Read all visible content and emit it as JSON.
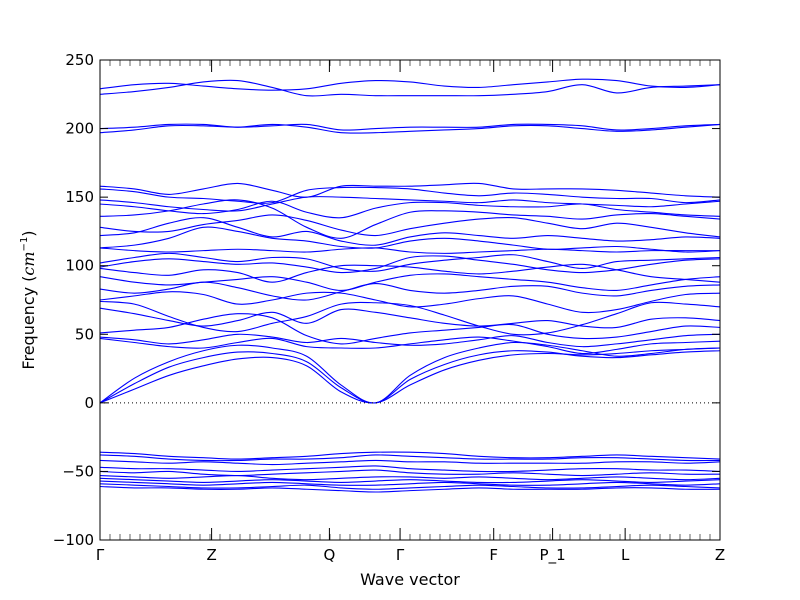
{
  "chart_data": {
    "type": "line",
    "title": "",
    "xlabel": "Wave vector",
    "ylabel": "Frequency (cm⁻¹)",
    "ylabel_text": "Frequency (",
    "ylabel_unit": "cm",
    "ylabel_exp": "−1",
    "ylabel_close": ")",
    "ylim": [
      -100,
      250
    ],
    "yticks": [
      -100,
      -50,
      0,
      50,
      100,
      150,
      200,
      250
    ],
    "xlim": [
      0,
      1
    ],
    "high_symmetry_points": [
      {
        "label": "Γ",
        "x": 0.0
      },
      {
        "label": "Z",
        "x": 0.18
      },
      {
        "label": "Q",
        "x": 0.37
      },
      {
        "label": "Γ",
        "x": 0.484
      },
      {
        "label": "F",
        "x": 0.635
      },
      {
        "label": "P_1",
        "x": 0.73
      },
      {
        "label": "L",
        "x": 0.847
      },
      {
        "label": "Z",
        "x": 1.0
      }
    ],
    "zero_line": {
      "y": 0,
      "style": "dotted"
    },
    "series_color": "#0000ff",
    "series": [
      {
        "values": [
          229,
          232,
          233,
          231,
          229,
          228,
          229,
          233,
          235,
          234,
          231,
          230,
          232,
          234,
          236,
          235,
          231,
          230,
          232
        ]
      },
      {
        "values": [
          225,
          227,
          230,
          234,
          235,
          230,
          224,
          225,
          224,
          224,
          224,
          224,
          225,
          227,
          232,
          226,
          230,
          231,
          232
        ]
      },
      {
        "values": [
          200,
          201,
          203,
          203,
          201,
          202,
          203,
          199,
          200,
          201,
          201,
          201,
          203,
          203,
          202,
          199,
          200,
          202,
          203
        ]
      },
      {
        "values": [
          197,
          199,
          202,
          202,
          201,
          203,
          201,
          197,
          197,
          198,
          199,
          200,
          202,
          202,
          200,
          198,
          199,
          201,
          203
        ]
      },
      {
        "values": [
          158,
          156,
          152,
          156,
          160,
          155,
          150,
          158,
          158,
          158,
          159,
          160,
          156,
          156,
          156,
          155,
          153,
          151,
          150
        ]
      },
      {
        "values": [
          156,
          154,
          150,
          149,
          147,
          146,
          155,
          157,
          157,
          156,
          153,
          151,
          153,
          152,
          150,
          149,
          149,
          146,
          148
        ]
      },
      {
        "values": [
          148,
          146,
          143,
          141,
          140,
          145,
          150,
          150,
          149,
          148,
          147,
          146,
          148,
          146,
          145,
          144,
          143,
          145,
          147
        ]
      },
      {
        "values": [
          145,
          143,
          140,
          138,
          141,
          147,
          139,
          135,
          142,
          146,
          146,
          144,
          143,
          143,
          145,
          141,
          139,
          137,
          136
        ]
      },
      {
        "values": [
          136,
          137,
          140,
          145,
          148,
          142,
          128,
          120,
          130,
          139,
          140,
          139,
          137,
          136,
          134,
          137,
          138,
          136,
          134
        ]
      },
      {
        "values": [
          128,
          125,
          125,
          130,
          133,
          137,
          133,
          126,
          122,
          127,
          131,
          134,
          135,
          131,
          127,
          131,
          128,
          124,
          121
        ]
      },
      {
        "values": [
          122,
          124,
          131,
          135,
          128,
          121,
          125,
          118,
          115,
          121,
          124,
          122,
          120,
          122,
          120,
          118,
          119,
          121,
          120
        ]
      },
      {
        "values": [
          113,
          115,
          120,
          128,
          125,
          120,
          118,
          114,
          113,
          118,
          120,
          118,
          115,
          112,
          113,
          114,
          112,
          110,
          111
        ]
      },
      {
        "values": [
          113,
          111,
          110,
          111,
          112,
          111,
          110,
          112,
          113,
          110,
          109,
          110,
          111,
          112,
          111,
          110,
          111,
          111,
          111
        ]
      },
      {
        "values": [
          102,
          106,
          109,
          106,
          103,
          106,
          105,
          98,
          96,
          101,
          104,
          106,
          108,
          103,
          98,
          103,
          104,
          105,
          106
        ]
      },
      {
        "values": [
          99,
          103,
          105,
          103,
          101,
          102,
          99,
          95,
          98,
          106,
          107,
          104,
          101,
          97,
          95,
          97,
          101,
          104,
          105
        ]
      },
      {
        "values": [
          98,
          95,
          93,
          97,
          95,
          88,
          95,
          100,
          100,
          99,
          96,
          94,
          96,
          99,
          101,
          97,
          92,
          90,
          88
        ]
      },
      {
        "values": [
          92,
          88,
          86,
          88,
          90,
          92,
          88,
          82,
          88,
          93,
          94,
          92,
          90,
          88,
          84,
          82,
          86,
          90,
          92
        ]
      },
      {
        "values": [
          83,
          80,
          83,
          88,
          84,
          78,
          75,
          81,
          87,
          82,
          80,
          82,
          85,
          85,
          80,
          78,
          82,
          85,
          86
        ]
      },
      {
        "values": [
          75,
          78,
          81,
          79,
          72,
          75,
          80,
          80,
          75,
          70,
          72,
          76,
          78,
          72,
          66,
          68,
          74,
          79,
          80
        ]
      },
      {
        "values": [
          74,
          72,
          63,
          55,
          52,
          58,
          63,
          72,
          73,
          71,
          64,
          56,
          50,
          51,
          57,
          65,
          73,
          72,
          70
        ]
      },
      {
        "values": [
          69,
          65,
          60,
          56,
          60,
          66,
          58,
          68,
          66,
          62,
          58,
          56,
          58,
          60,
          56,
          55,
          61,
          62,
          60
        ]
      },
      {
        "values": [
          51,
          53,
          55,
          61,
          65,
          62,
          49,
          43,
          47,
          51,
          53,
          55,
          57,
          50,
          47,
          48,
          52,
          56,
          55
        ]
      },
      {
        "values": [
          48,
          46,
          43,
          46,
          50,
          48,
          44,
          47,
          44,
          42,
          43,
          46,
          49,
          44,
          41,
          43,
          46,
          49,
          50
        ]
      },
      {
        "values": [
          47,
          44,
          41,
          40,
          44,
          47,
          41,
          40,
          40,
          43,
          46,
          48,
          45,
          41,
          36,
          39,
          43,
          44,
          45
        ]
      },
      {
        "values": [
          0,
          18,
          30,
          38,
          42,
          40,
          34,
          13,
          0,
          20,
          33,
          40,
          44,
          42,
          38,
          34,
          36,
          39,
          40
        ]
      },
      {
        "values": [
          0,
          14,
          26,
          33,
          37,
          36,
          30,
          11,
          0,
          17,
          28,
          35,
          38,
          37,
          34,
          33,
          35,
          37,
          38
        ]
      },
      {
        "values": [
          0,
          10,
          20,
          27,
          32,
          33,
          27,
          8,
          0,
          13,
          24,
          31,
          35,
          36,
          35,
          36,
          38,
          39,
          40
        ]
      },
      {
        "values": [
          -36,
          -37,
          -39,
          -40,
          -41,
          -40,
          -39,
          -37,
          -36,
          -36,
          -37,
          -39,
          -40,
          -40,
          -39,
          -38,
          -39,
          -40,
          -41
        ]
      },
      {
        "values": [
          -38,
          -39,
          -41,
          -42,
          -42,
          -41,
          -41,
          -40,
          -38,
          -39,
          -40,
          -41,
          -41,
          -41,
          -40,
          -40,
          -41,
          -42,
          -42
        ]
      },
      {
        "values": [
          -42,
          -43,
          -44,
          -43,
          -44,
          -45,
          -44,
          -43,
          -42,
          -43,
          -43,
          -44,
          -44,
          -44,
          -44,
          -43,
          -43,
          -44,
          -43
        ]
      },
      {
        "values": [
          -47,
          -48,
          -48,
          -49,
          -50,
          -49,
          -48,
          -47,
          -46,
          -48,
          -49,
          -50,
          -50,
          -49,
          -48,
          -48,
          -49,
          -49,
          -50
        ]
      },
      {
        "values": [
          -50,
          -51,
          -50,
          -52,
          -53,
          -52,
          -51,
          -50,
          -49,
          -51,
          -52,
          -52,
          -51,
          -52,
          -53,
          -52,
          -51,
          -52,
          -52
        ]
      },
      {
        "values": [
          -53,
          -54,
          -55,
          -54,
          -53,
          -55,
          -56,
          -55,
          -54,
          -54,
          -55,
          -54,
          -55,
          -56,
          -55,
          -54,
          -55,
          -56,
          -55
        ]
      },
      {
        "values": [
          -55,
          -56,
          -57,
          -58,
          -57,
          -56,
          -57,
          -58,
          -57,
          -56,
          -57,
          -58,
          -58,
          -57,
          -56,
          -57,
          -58,
          -57,
          -56
        ]
      },
      {
        "values": [
          -57,
          -58,
          -59,
          -60,
          -59,
          -58,
          -59,
          -60,
          -60,
          -59,
          -58,
          -59,
          -60,
          -60,
          -59,
          -58,
          -59,
          -60,
          -59
        ]
      },
      {
        "values": [
          -59,
          -60,
          -61,
          -62,
          -62,
          -61,
          -60,
          -62,
          -63,
          -62,
          -61,
          -60,
          -61,
          -62,
          -62,
          -61,
          -60,
          -61,
          -62
        ]
      },
      {
        "values": [
          -61,
          -62,
          -62,
          -63,
          -63,
          -62,
          -63,
          -64,
          -65,
          -64,
          -63,
          -62,
          -63,
          -63,
          -63,
          -62,
          -62,
          -63,
          -63
        ]
      }
    ]
  }
}
